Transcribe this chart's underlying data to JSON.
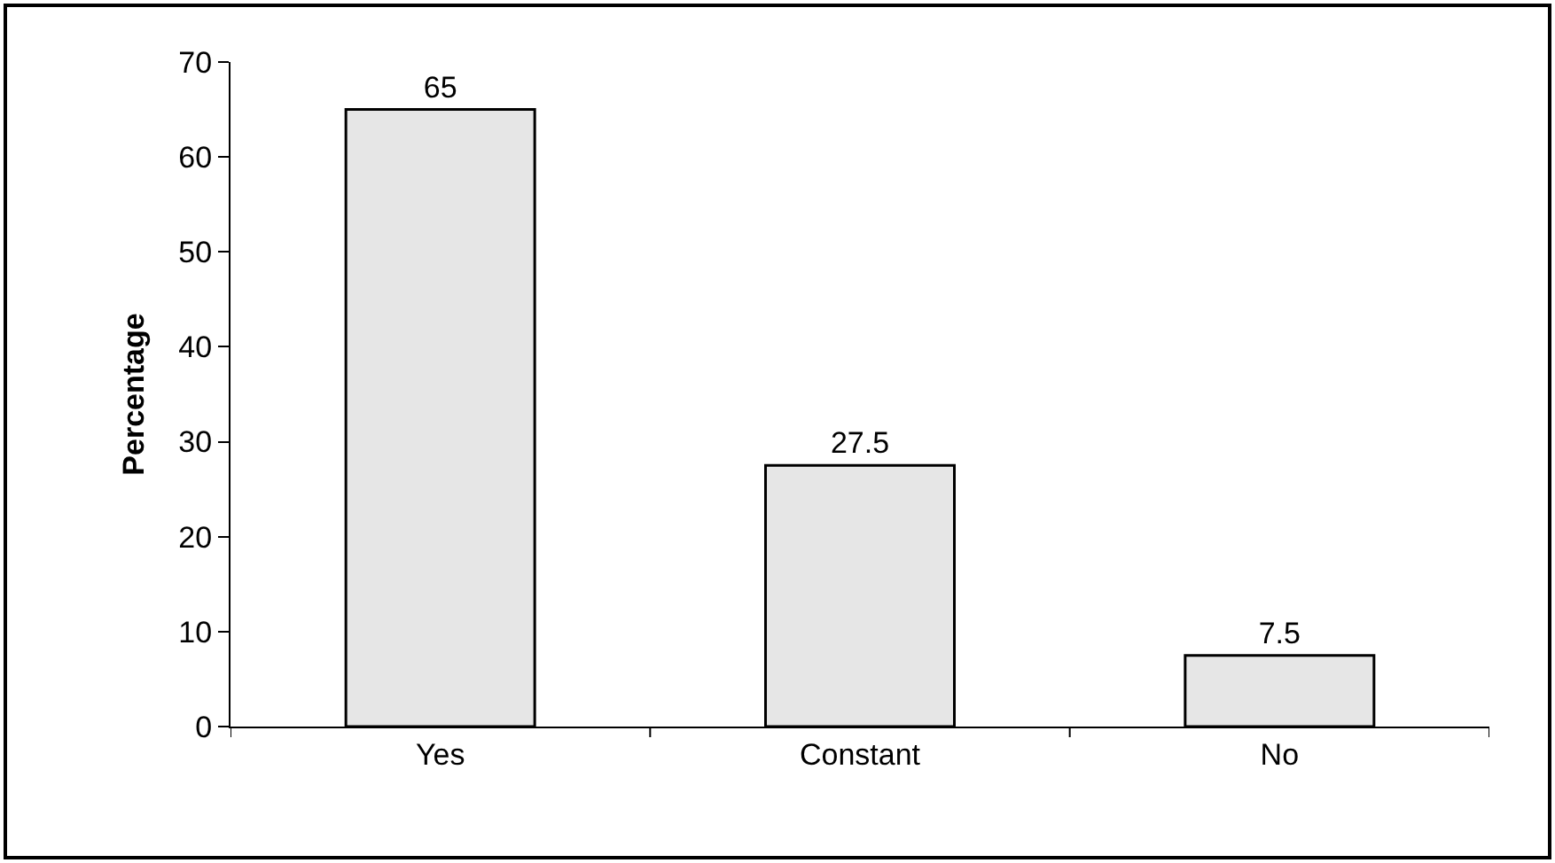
{
  "chart_data": {
    "type": "bar",
    "ylabel": "Percentage",
    "categories": [
      "Yes",
      "Constant",
      "No"
    ],
    "values": [
      65,
      27.5,
      7.5
    ],
    "color": "#e6e6e6",
    "ylim": [
      0,
      70
    ],
    "yticks": [
      0,
      10,
      20,
      30,
      40,
      50,
      60,
      70
    ],
    "data_labels": true
  }
}
